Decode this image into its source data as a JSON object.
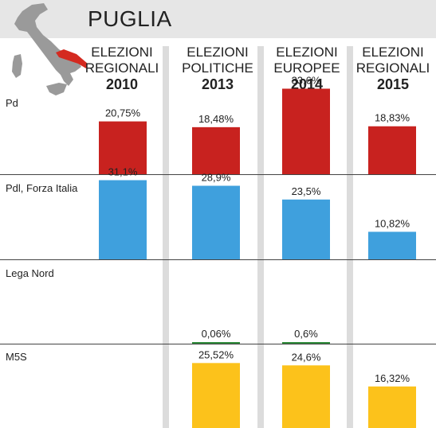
{
  "header": {
    "title": "PUGLIA"
  },
  "columns": [
    {
      "line1": "ELEZIONI",
      "line2": "REGIONALI",
      "year": "2010"
    },
    {
      "line1": "ELEZIONI",
      "line2": "POLITICHE",
      "year": "2013"
    },
    {
      "line1": "ELEZIONI",
      "line2": "EUROPEE",
      "year": "2014"
    },
    {
      "line1": "ELEZIONI",
      "line2": "REGIONALI",
      "year": "2015"
    }
  ],
  "colors": {
    "Pd": "#c8221f",
    "Pdl, Forza Italia": "#3fa0dd",
    "Lega Nord": "#2e8b3a",
    "M5S": "#fcc21b",
    "column_stripe": "#dcdcdc",
    "map": "#9a9a9a",
    "map_highlight": "#d42a20"
  },
  "chart_data": {
    "type": "bar",
    "categories": [
      "ELEZIONI REGIONALI 2010",
      "ELEZIONI POLITICHE 2013",
      "ELEZIONI EUROPEE 2014",
      "ELEZIONI REGIONALI 2015"
    ],
    "unit": "%",
    "ylim": [
      0,
      50
    ],
    "series": [
      {
        "name": "Pd",
        "values": [
          20.75,
          18.48,
          33.6,
          18.83
        ],
        "labels": [
          "20,75%",
          "18,48%",
          "33,6%",
          "18,83%"
        ]
      },
      {
        "name": "Pdl, Forza Italia",
        "values": [
          31.1,
          28.9,
          23.5,
          10.82
        ],
        "labels": [
          "31,1%",
          "28,9%",
          "23,5%",
          "10,82%"
        ]
      },
      {
        "name": "Lega Nord",
        "values": [
          null,
          0.06,
          0.6,
          null
        ],
        "labels": [
          "",
          "0,06%",
          "0,6%",
          ""
        ]
      },
      {
        "name": "M5S",
        "values": [
          null,
          25.52,
          24.6,
          16.32
        ],
        "labels": [
          "",
          "25,52%",
          "24,6%",
          "16,32%"
        ]
      }
    ]
  }
}
